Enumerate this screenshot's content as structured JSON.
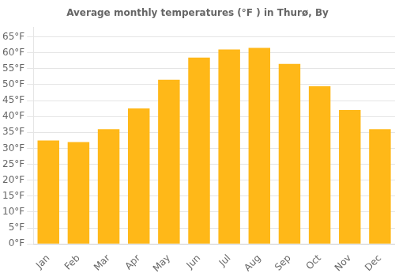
{
  "chart_data": {
    "type": "bar",
    "title": "Average monthly temperatures (°F ) in Thurø, By",
    "categories": [
      "Jan",
      "Feb",
      "Mar",
      "Apr",
      "May",
      "Jun",
      "Jul",
      "Aug",
      "Sep",
      "Oct",
      "Nov",
      "Dec"
    ],
    "values": [
      32.5,
      32.0,
      36.0,
      42.5,
      51.5,
      58.5,
      61.0,
      61.5,
      56.5,
      49.5,
      42.0,
      36.0
    ],
    "color": "#FFB818",
    "ylim": [
      0,
      68
    ],
    "yticks": [
      {
        "value": 0,
        "label": "0°F"
      },
      {
        "value": 5,
        "label": "5°F"
      },
      {
        "value": 10,
        "label": "10°F"
      },
      {
        "value": 15,
        "label": "15°F"
      },
      {
        "value": 20,
        "label": "20°F"
      },
      {
        "value": 25,
        "label": "25°F"
      },
      {
        "value": 30,
        "label": "30°F"
      },
      {
        "value": 35,
        "label": "35°F"
      },
      {
        "value": 40,
        "label": "40°F"
      },
      {
        "value": 45,
        "label": "45°F"
      },
      {
        "value": 50,
        "label": "50°F"
      },
      {
        "value": 55,
        "label": "55°F"
      },
      {
        "value": 60,
        "label": "60°F"
      },
      {
        "value": 65,
        "label": "65°F"
      }
    ],
    "grid": "y"
  }
}
